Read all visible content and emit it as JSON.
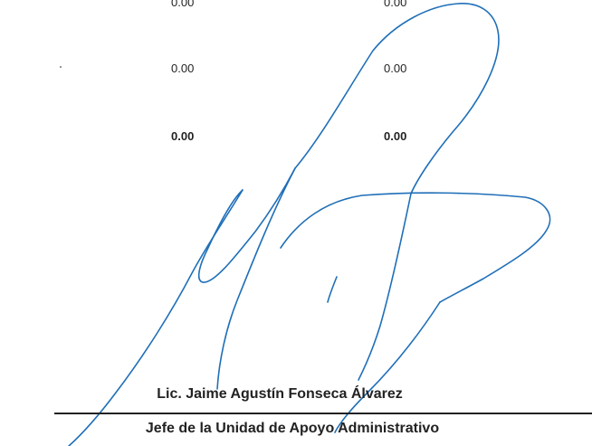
{
  "values": {
    "row1": [
      "0.00",
      "0.00"
    ],
    "row2": [
      "0.00",
      "0.00"
    ],
    "total": [
      "0.00",
      "0.00"
    ]
  },
  "signature": {
    "signer_name": "Lic. Jaime Agustín Fonseca Álvarez",
    "signer_title": "Jefe de la Unidad de Apoyo Administrativo",
    "ink_color": "#1f6fb8"
  }
}
